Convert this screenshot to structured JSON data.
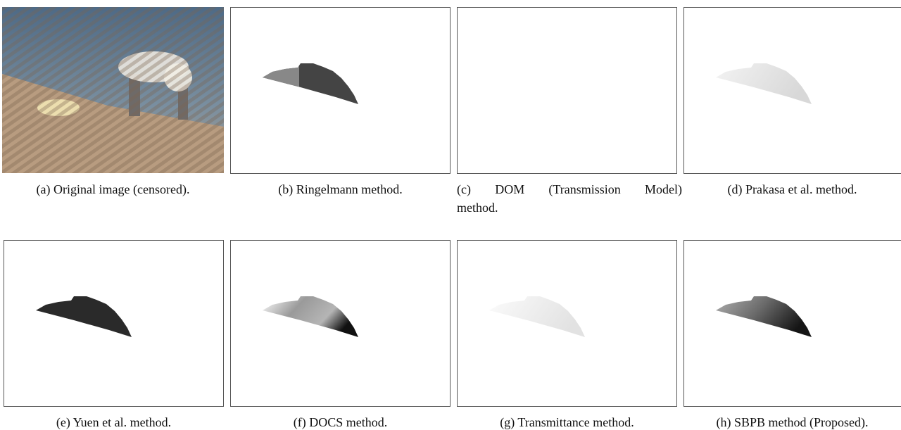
{
  "figure": {
    "panels": [
      {
        "caption": "(a) Original image (censored)."
      },
      {
        "caption": "(b) Ringelmann method."
      },
      {
        "caption": "(c) DOM (Transmission Model) method."
      },
      {
        "caption": "(d) Prakasa et al. method."
      },
      {
        "caption": "(e) Yuen et al. method."
      },
      {
        "caption": "(f) DOCS method."
      },
      {
        "caption": "(g) Transmittance method."
      },
      {
        "caption": "(h) SBPB method (Proposed)."
      }
    ]
  }
}
